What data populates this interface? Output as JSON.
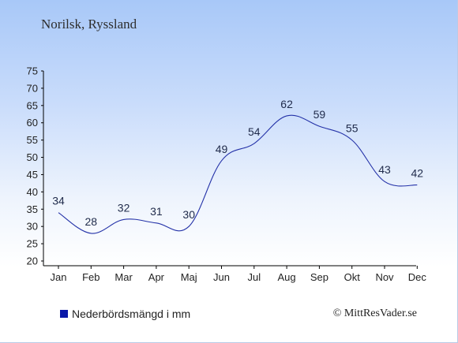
{
  "header": {
    "subtitle": "Norilsk, Ryssland"
  },
  "legend": {
    "label": "Nederbördsmängd i mm",
    "swatch_color": "#0a18a8"
  },
  "footer": {
    "copyright": "© MittResVader.se"
  },
  "colors": {
    "line": "#2432a8",
    "axis": "#000000"
  },
  "chart_data": {
    "type": "line",
    "categories": [
      "Jan",
      "Feb",
      "Mar",
      "Apr",
      "Maj",
      "Jun",
      "Jul",
      "Aug",
      "Sep",
      "Okt",
      "Nov",
      "Dec"
    ],
    "values": [
      34,
      28,
      32,
      31,
      30,
      49,
      54,
      62,
      59,
      55,
      43,
      42
    ],
    "data_labels": [
      "34",
      "28",
      "32",
      "31",
      "30",
      "49",
      "54",
      "62",
      "59",
      "55",
      "43",
      "42"
    ],
    "yticks": [
      20,
      25,
      30,
      35,
      40,
      45,
      50,
      55,
      60,
      65,
      70,
      75
    ],
    "ylim": [
      20,
      75
    ],
    "grid": false,
    "legend_position": "bottom-left",
    "title": "",
    "xlabel": "",
    "ylabel": ""
  }
}
